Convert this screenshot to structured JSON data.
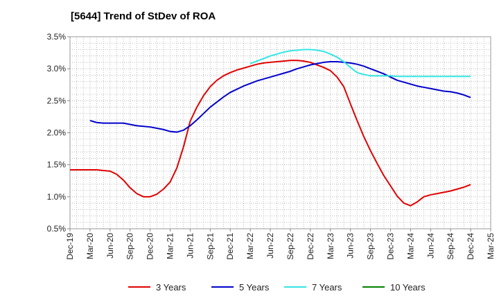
{
  "chart_data": {
    "type": "line",
    "title": "[5644]  Trend of StDev of ROA",
    "xlabel": "",
    "ylabel": "",
    "x_ticks": [
      "Dec-19",
      "Mar-20",
      "Jun-20",
      "Sep-20",
      "Dec-20",
      "Mar-21",
      "Jun-21",
      "Sep-21",
      "Dec-21",
      "Mar-22",
      "Jun-22",
      "Sep-22",
      "Dec-22",
      "Mar-23",
      "Jun-23",
      "Sep-23",
      "Dec-23",
      "Mar-24",
      "Jun-24",
      "Sep-24",
      "Dec-24",
      "Mar-25"
    ],
    "y_ticks": [
      "0.5%",
      "1.0%",
      "1.5%",
      "2.0%",
      "2.5%",
      "3.0%",
      "3.5%"
    ],
    "ylim": [
      0.5,
      3.5
    ],
    "y_unit": "%",
    "grid": true,
    "legend_position": "bottom",
    "series": [
      {
        "name": "3 Years",
        "color": "#e00000",
        "points": [
          [
            "Dec-19",
            1.42
          ],
          [
            "Jan-20",
            1.42
          ],
          [
            "Feb-20",
            1.42
          ],
          [
            "Mar-20",
            1.42
          ],
          [
            "Apr-20",
            1.42
          ],
          [
            "May-20",
            1.41
          ],
          [
            "Jun-20",
            1.4
          ],
          [
            "Jul-20",
            1.35
          ],
          [
            "Aug-20",
            1.26
          ],
          [
            "Sep-20",
            1.14
          ],
          [
            "Oct-20",
            1.05
          ],
          [
            "Nov-20",
            1.0
          ],
          [
            "Dec-20",
            1.0
          ],
          [
            "Jan-21",
            1.04
          ],
          [
            "Feb-21",
            1.12
          ],
          [
            "Mar-21",
            1.23
          ],
          [
            "Apr-21",
            1.45
          ],
          [
            "May-21",
            1.78
          ],
          [
            "Jun-21",
            2.18
          ],
          [
            "Jul-21",
            2.4
          ],
          [
            "Aug-21",
            2.58
          ],
          [
            "Sep-21",
            2.72
          ],
          [
            "Oct-21",
            2.82
          ],
          [
            "Nov-21",
            2.89
          ],
          [
            "Dec-21",
            2.94
          ],
          [
            "Jan-22",
            2.98
          ],
          [
            "Feb-22",
            3.01
          ],
          [
            "Mar-22",
            3.04
          ],
          [
            "Apr-22",
            3.07
          ],
          [
            "May-22",
            3.09
          ],
          [
            "Jun-22",
            3.1
          ],
          [
            "Jul-22",
            3.11
          ],
          [
            "Aug-22",
            3.12
          ],
          [
            "Sep-22",
            3.13
          ],
          [
            "Oct-22",
            3.13
          ],
          [
            "Nov-22",
            3.12
          ],
          [
            "Dec-22",
            3.1
          ],
          [
            "Jan-23",
            3.06
          ],
          [
            "Feb-23",
            3.02
          ],
          [
            "Mar-23",
            2.97
          ],
          [
            "Apr-23",
            2.87
          ],
          [
            "May-23",
            2.72
          ],
          [
            "Jun-23",
            2.45
          ],
          [
            "Jul-23",
            2.19
          ],
          [
            "Aug-23",
            1.94
          ],
          [
            "Sep-23",
            1.72
          ],
          [
            "Oct-23",
            1.52
          ],
          [
            "Nov-23",
            1.33
          ],
          [
            "Dec-23",
            1.17
          ],
          [
            "Jan-24",
            1.01
          ],
          [
            "Feb-24",
            0.9
          ],
          [
            "Mar-24",
            0.86
          ],
          [
            "Apr-24",
            0.92
          ],
          [
            "May-24",
            1.0
          ],
          [
            "Jun-24",
            1.03
          ],
          [
            "Jul-24",
            1.05
          ],
          [
            "Aug-24",
            1.07
          ],
          [
            "Sep-24",
            1.09
          ],
          [
            "Oct-24",
            1.12
          ],
          [
            "Nov-24",
            1.15
          ],
          [
            "Dec-24",
            1.19
          ]
        ]
      },
      {
        "name": "5 Years",
        "color": "#0000cc",
        "points": [
          [
            "Mar-20",
            2.19
          ],
          [
            "Apr-20",
            2.16
          ],
          [
            "May-20",
            2.15
          ],
          [
            "Jun-20",
            2.15
          ],
          [
            "Jul-20",
            2.15
          ],
          [
            "Aug-20",
            2.15
          ],
          [
            "Sep-20",
            2.13
          ],
          [
            "Oct-20",
            2.11
          ],
          [
            "Nov-20",
            2.1
          ],
          [
            "Dec-20",
            2.09
          ],
          [
            "Jan-21",
            2.07
          ],
          [
            "Feb-21",
            2.05
          ],
          [
            "Mar-21",
            2.02
          ],
          [
            "Apr-21",
            2.01
          ],
          [
            "May-21",
            2.04
          ],
          [
            "Jun-21",
            2.11
          ],
          [
            "Jul-21",
            2.2
          ],
          [
            "Aug-21",
            2.3
          ],
          [
            "Sep-21",
            2.4
          ],
          [
            "Oct-21",
            2.48
          ],
          [
            "Nov-21",
            2.56
          ],
          [
            "Dec-21",
            2.63
          ],
          [
            "Jan-22",
            2.68
          ],
          [
            "Feb-22",
            2.73
          ],
          [
            "Mar-22",
            2.77
          ],
          [
            "Apr-22",
            2.81
          ],
          [
            "May-22",
            2.84
          ],
          [
            "Jun-22",
            2.87
          ],
          [
            "Jul-22",
            2.9
          ],
          [
            "Aug-22",
            2.93
          ],
          [
            "Sep-22",
            2.96
          ],
          [
            "Oct-22",
            3.0
          ],
          [
            "Nov-22",
            3.03
          ],
          [
            "Dec-22",
            3.06
          ],
          [
            "Jan-23",
            3.08
          ],
          [
            "Feb-23",
            3.1
          ],
          [
            "Mar-23",
            3.11
          ],
          [
            "Apr-23",
            3.11
          ],
          [
            "May-23",
            3.1
          ],
          [
            "Jun-23",
            3.09
          ],
          [
            "Jul-23",
            3.07
          ],
          [
            "Aug-23",
            3.04
          ],
          [
            "Sep-23",
            3.0
          ],
          [
            "Oct-23",
            2.96
          ],
          [
            "Nov-23",
            2.92
          ],
          [
            "Dec-23",
            2.87
          ],
          [
            "Jan-24",
            2.82
          ],
          [
            "Feb-24",
            2.79
          ],
          [
            "Mar-24",
            2.76
          ],
          [
            "Apr-24",
            2.73
          ],
          [
            "May-24",
            2.71
          ],
          [
            "Jun-24",
            2.69
          ],
          [
            "Jul-24",
            2.67
          ],
          [
            "Aug-24",
            2.65
          ],
          [
            "Sep-24",
            2.64
          ],
          [
            "Oct-24",
            2.62
          ],
          [
            "Nov-24",
            2.59
          ],
          [
            "Dec-24",
            2.55
          ]
        ]
      },
      {
        "name": "7 Years",
        "color": "#33e5e5",
        "points": [
          [
            "Mar-22",
            3.08
          ],
          [
            "Apr-22",
            3.12
          ],
          [
            "May-22",
            3.16
          ],
          [
            "Jun-22",
            3.2
          ],
          [
            "Jul-22",
            3.23
          ],
          [
            "Aug-22",
            3.26
          ],
          [
            "Sep-22",
            3.28
          ],
          [
            "Oct-22",
            3.29
          ],
          [
            "Nov-22",
            3.3
          ],
          [
            "Dec-22",
            3.3
          ],
          [
            "Jan-23",
            3.29
          ],
          [
            "Feb-23",
            3.27
          ],
          [
            "Mar-23",
            3.23
          ],
          [
            "Apr-23",
            3.18
          ],
          [
            "May-23",
            3.11
          ],
          [
            "Jun-23",
            3.02
          ],
          [
            "Jul-23",
            2.94
          ],
          [
            "Aug-23",
            2.91
          ],
          [
            "Sep-23",
            2.89
          ],
          [
            "Oct-23",
            2.89
          ],
          [
            "Nov-23",
            2.89
          ],
          [
            "Dec-23",
            2.89
          ],
          [
            "Jan-24",
            2.88
          ],
          [
            "Feb-24",
            2.88
          ],
          [
            "Mar-24",
            2.88
          ],
          [
            "Apr-24",
            2.88
          ],
          [
            "May-24",
            2.88
          ],
          [
            "Jun-24",
            2.88
          ],
          [
            "Jul-24",
            2.88
          ],
          [
            "Aug-24",
            2.88
          ],
          [
            "Sep-24",
            2.88
          ],
          [
            "Oct-24",
            2.88
          ],
          [
            "Nov-24",
            2.88
          ],
          [
            "Dec-24",
            2.88
          ]
        ]
      },
      {
        "name": "10 Years",
        "color": "#008000",
        "points": []
      }
    ]
  }
}
